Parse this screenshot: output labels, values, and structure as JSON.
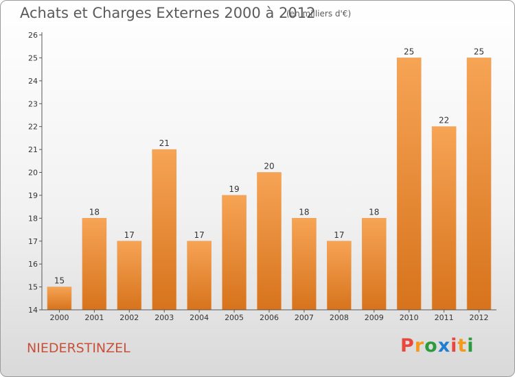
{
  "header": {
    "title": "Achats et Charges Externes 2000 à 2012",
    "subtitle": "(en milliers d'€)"
  },
  "footer": {
    "commune": "NIEDERSTINZEL",
    "logo": {
      "letters": [
        "P",
        "r",
        "o",
        "x",
        "i",
        "t",
        "i"
      ],
      "colors": [
        "#e8483c",
        "#f39a1c",
        "#2c9b3c",
        "#1f7ed1",
        "#e8483c",
        "#f39a1c",
        "#2c9b3c"
      ]
    }
  },
  "colors": {
    "bar_top": "#f6a455",
    "bar_bottom": "#d7731c",
    "axis": "#555555"
  },
  "chart_data": {
    "type": "bar",
    "title": "Achats et Charges Externes 2000 à 2012",
    "subtitle": "(en milliers d'€)",
    "xlabel": "",
    "ylabel": "",
    "categories": [
      "2000",
      "2001",
      "2002",
      "2003",
      "2004",
      "2005",
      "2006",
      "2007",
      "2008",
      "2009",
      "2010",
      "2011",
      "2012"
    ],
    "values": [
      15,
      18,
      17,
      21,
      17,
      19,
      20,
      18,
      17,
      18,
      25,
      22,
      25
    ],
    "data_labels": [
      "15",
      "18",
      "17",
      "21",
      "17",
      "19",
      "20",
      "18",
      "17",
      "18",
      "25",
      "22",
      "25"
    ],
    "ylim": [
      14,
      26
    ],
    "yticks": [
      14,
      15,
      16,
      17,
      18,
      19,
      20,
      21,
      22,
      23,
      24,
      25,
      26
    ],
    "grid": false,
    "legend": "none"
  }
}
